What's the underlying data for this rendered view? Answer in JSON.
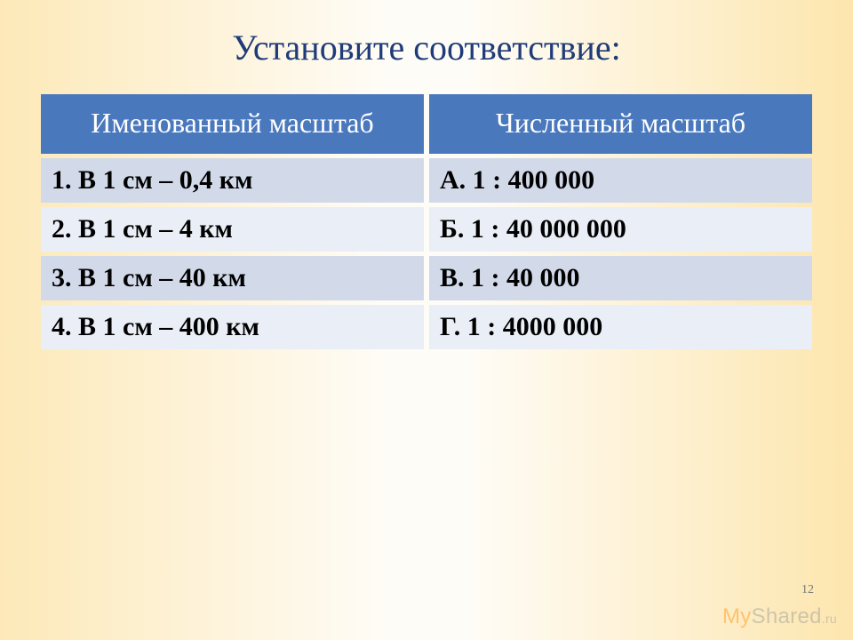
{
  "title": "Установите соответствие:",
  "title_color": "#1f3b78",
  "background_gradient": {
    "from": "#fde9b8",
    "mid": "#fefcf6",
    "to": "#fde6ae"
  },
  "table": {
    "header_bg": "#4a78bd",
    "header_fg": "#ffffff",
    "row_odd_bg": "#d2daea",
    "row_even_bg": "#eaeef6",
    "columns": [
      "Именованный масштаб",
      "Численный масштаб"
    ],
    "rows": [
      [
        "1. В 1 см – 0,4 км",
        "А.  1 : 400 000"
      ],
      [
        "2. В 1 см – 4 км",
        "Б.  1 : 40 000 000"
      ],
      [
        "3. В 1 см – 40 км",
        "В.  1 : 40 000"
      ],
      [
        "4. В 1 см – 400 км",
        "Г.  1 : 4000 000"
      ]
    ]
  },
  "page_number": "12",
  "watermark": {
    "part1": "My",
    "part2": "Shared",
    "part3": ".ru"
  }
}
